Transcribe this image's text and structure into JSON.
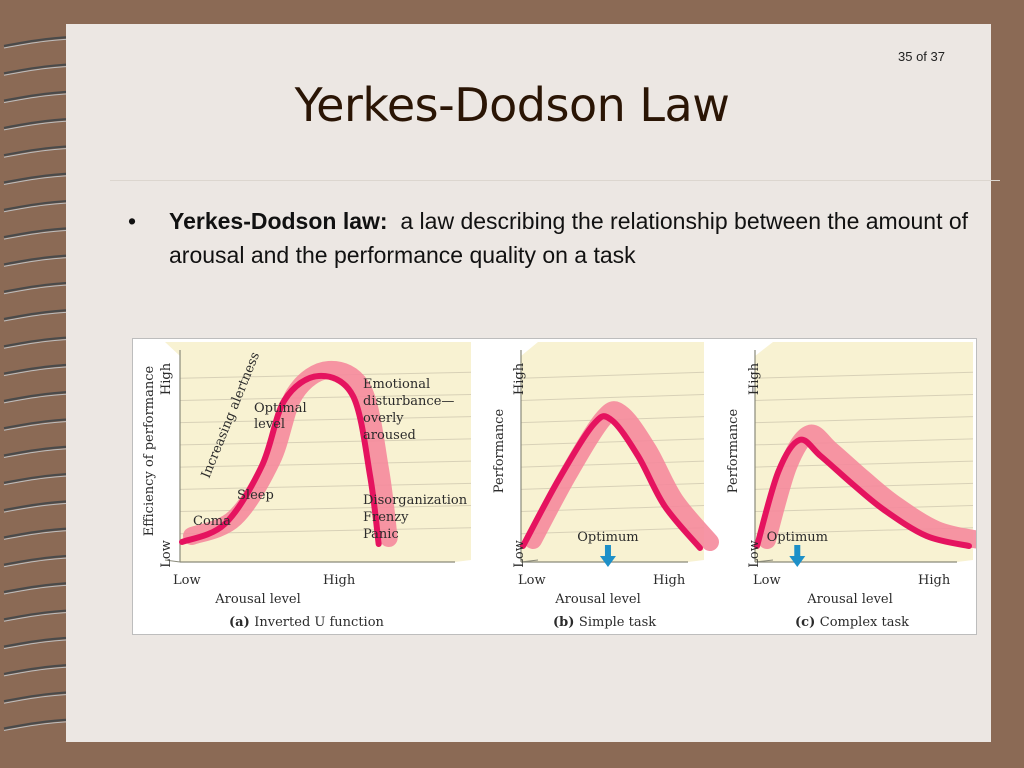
{
  "slide": {
    "number_label": "35 of 37",
    "title": "Yerkes-Dodson Law",
    "bullet_glyph": "•",
    "term": "Yerkes-Dodson law:",
    "definition": "a law describing the relationship between the amount of arousal and the performance quality on a task"
  },
  "colors": {
    "panel_bg": "#f8f2d2",
    "grid": "#d8d1b7",
    "curve": "#e5135f",
    "band": "#f58a9c",
    "arrow": "#1e90c8",
    "text": "#2b2b2b"
  },
  "chart_data": [
    {
      "type": "line",
      "panel": "a",
      "caption_letter": "(a)",
      "caption": "Inverted U function",
      "ylabel": "Efficiency of performance",
      "xlabel": "Arousal level",
      "x_ticks": [
        "Low",
        "High"
      ],
      "y_ticks": [
        "Low",
        "High"
      ],
      "xlim": [
        0,
        10
      ],
      "ylim": [
        0,
        10
      ],
      "grid": true,
      "curve": {
        "x": [
          0,
          1.5,
          2.8,
          3.6,
          4.8,
          6,
          6.6,
          6.9
        ],
        "y": [
          0.7,
          1.6,
          4.5,
          7.8,
          9.0,
          8.0,
          4.0,
          0.6
        ]
      },
      "annotations": {
        "increasing": "Increasing alertness",
        "optimal": [
          "Optimal",
          "level"
        ],
        "emotional": [
          "Emotional",
          "disturbance—",
          "overly",
          "aroused"
        ],
        "sleep": "Sleep",
        "coma": "Coma",
        "disorg": [
          "Disorganization",
          "Frenzy",
          "Panic"
        ]
      }
    },
    {
      "type": "line",
      "panel": "b",
      "caption_letter": "(b)",
      "caption": "Simple task",
      "ylabel": "Performance",
      "xlabel": "Arousal level",
      "x_ticks": [
        "Low",
        "High"
      ],
      "y_ticks": [
        "Low",
        "High"
      ],
      "xlim": [
        0,
        10
      ],
      "ylim": [
        0,
        10
      ],
      "grid": true,
      "curve": {
        "x": [
          0,
          2,
          4,
          5,
          6.5,
          8,
          10
        ],
        "y": [
          0.5,
          3.8,
          6.6,
          6.8,
          5.0,
          2.5,
          0.4
        ]
      },
      "optimum": {
        "label": "Optimum",
        "x": 4.8
      }
    },
    {
      "type": "line",
      "panel": "c",
      "caption_letter": "(c)",
      "caption": "Complex task",
      "ylabel": "Performance",
      "xlabel": "Arousal level",
      "x_ticks": [
        "Low",
        "High"
      ],
      "y_ticks": [
        "Low",
        "High"
      ],
      "xlim": [
        0,
        10
      ],
      "ylim": [
        0,
        10
      ],
      "grid": true,
      "curve": {
        "x": [
          0,
          1,
          2,
          3,
          4.5,
          6,
          8,
          10
        ],
        "y": [
          0.5,
          4.2,
          5.8,
          5.0,
          3.6,
          2.3,
          1.0,
          0.5
        ]
      },
      "optimum": {
        "label": "Optimum",
        "x": 1.9
      }
    }
  ]
}
